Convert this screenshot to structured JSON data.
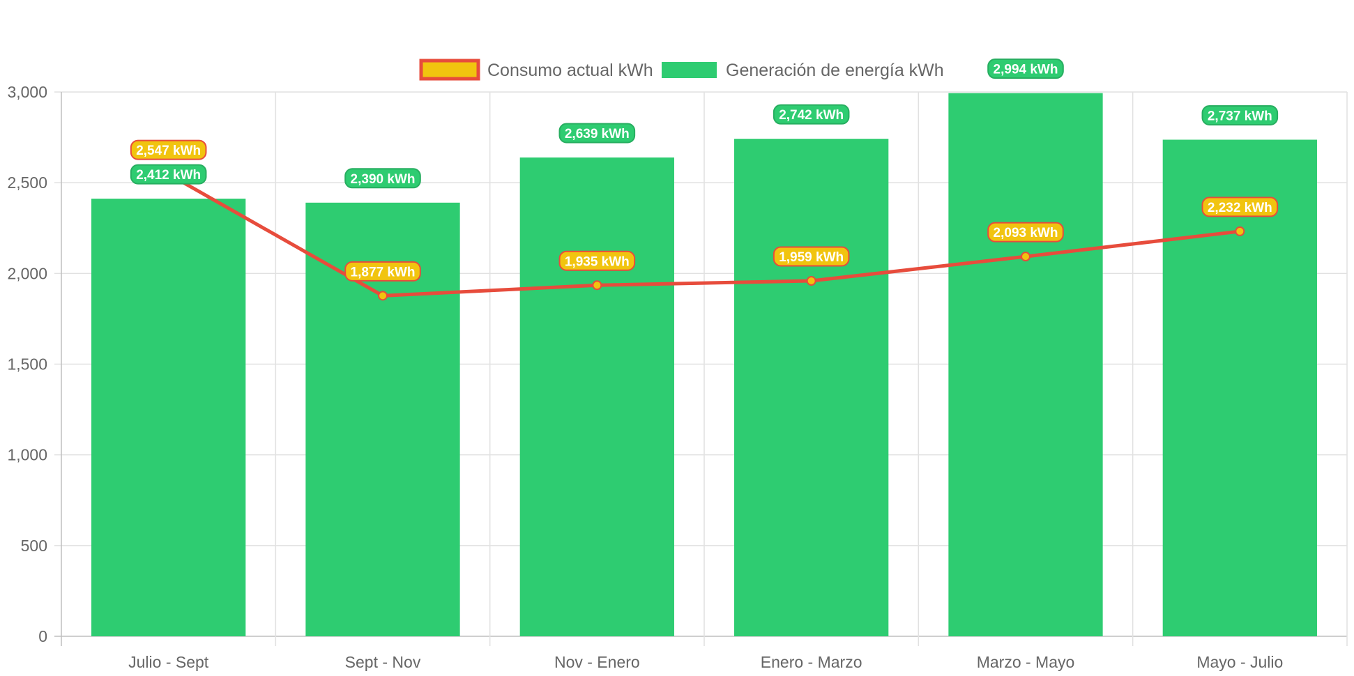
{
  "chart_data": {
    "type": "bar",
    "categories": [
      "Julio - Sept",
      "Sept - Nov",
      "Nov - Enero",
      "Enero - Marzo",
      "Marzo - Mayo",
      "Mayo - Julio"
    ],
    "series": [
      {
        "name": "Generación de energía kWh",
        "type": "bar",
        "values": [
          2412,
          2390,
          2639,
          2742,
          2994,
          2737
        ],
        "labels": [
          "2,412 kWh",
          "2,390 kWh",
          "2,639 kWh",
          "2,742 kWh",
          "2,994 kWh",
          "2,737 kWh"
        ],
        "color": "#2ecc71"
      },
      {
        "name": "Consumo actual kWh",
        "type": "line",
        "values": [
          2547,
          1877,
          1935,
          1959,
          2093,
          2232
        ],
        "labels": [
          "2,547 kWh",
          "1,877 kWh",
          "1,935 kWh",
          "1,959 kWh",
          "2,093 kWh",
          "2,232 kWh"
        ],
        "color": "#f1c40f",
        "border_color": "#e74c3c"
      }
    ],
    "ylim": [
      0,
      3000
    ],
    "yticks": [
      0,
      500,
      1000,
      1500,
      2000,
      2500,
      3000
    ],
    "ytick_labels": [
      "0",
      "500",
      "1,000",
      "1,500",
      "2,000",
      "2,500",
      "3,000"
    ],
    "grid": true,
    "legend_position": "top-center",
    "legend": [
      "Consumo actual kWh",
      "Generación de energía kWh"
    ]
  }
}
